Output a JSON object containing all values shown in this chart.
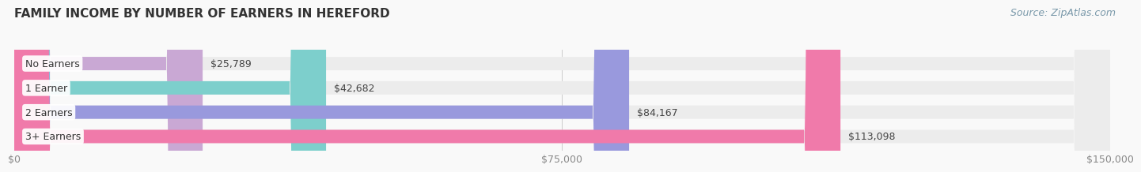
{
  "title": "FAMILY INCOME BY NUMBER OF EARNERS IN HEREFORD",
  "source": "Source: ZipAtlas.com",
  "categories": [
    "No Earners",
    "1 Earner",
    "2 Earners",
    "3+ Earners"
  ],
  "values": [
    25789,
    42682,
    84167,
    113098
  ],
  "labels": [
    "$25,789",
    "$42,682",
    "$84,167",
    "$113,098"
  ],
  "bar_colors": [
    "#c9a8d4",
    "#7dcfcc",
    "#9999dd",
    "#f07aaa"
  ],
  "background_color": "#f9f9f9",
  "bar_bg_color": "#ececec",
  "xlim": [
    0,
    150000
  ],
  "xticklabels": [
    "$0",
    "$75,000",
    "$150,000"
  ],
  "xtick_values": [
    0,
    75000,
    150000
  ],
  "title_fontsize": 11,
  "label_fontsize": 9,
  "tick_fontsize": 9,
  "source_fontsize": 9,
  "bar_height": 0.55,
  "title_color": "#333333",
  "tick_color": "#888888",
  "source_color": "#7a99aa",
  "label_color": "#444444",
  "category_label_color": "#333333"
}
